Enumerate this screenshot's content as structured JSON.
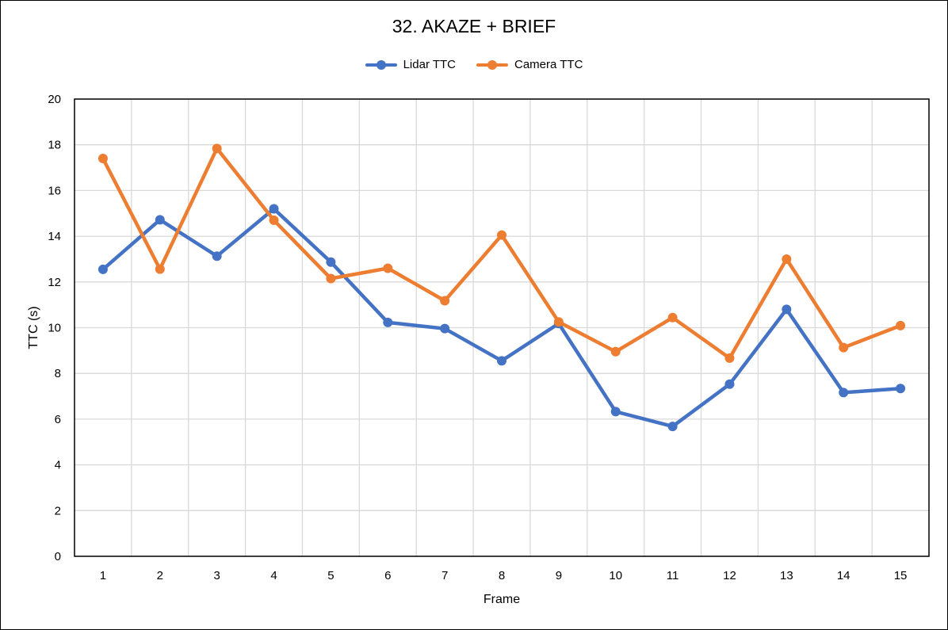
{
  "chart_data": {
    "type": "line",
    "title": "32. AKAZE + BRIEF",
    "xlabel": "Frame",
    "ylabel": "TTC (s)",
    "x": [
      "1",
      "2",
      "3",
      "4",
      "5",
      "6",
      "7",
      "8",
      "9",
      "10",
      "11",
      "12",
      "13",
      "14",
      "15"
    ],
    "ylim": [
      0,
      20
    ],
    "ytick_step": 2,
    "grid": true,
    "legend_position": "top",
    "series": [
      {
        "name": "Lidar TTC",
        "color": "#4472C4",
        "values": [
          12.55,
          14.72,
          13.13,
          15.2,
          12.87,
          10.23,
          9.96,
          8.55,
          10.18,
          6.33,
          5.68,
          7.53,
          10.8,
          7.16,
          7.34
        ]
      },
      {
        "name": "Camera TTC",
        "color": "#ED7D31",
        "values": [
          17.4,
          12.56,
          17.84,
          14.7,
          12.15,
          12.6,
          11.18,
          14.05,
          10.25,
          8.95,
          10.44,
          8.67,
          13.0,
          9.13,
          10.09
        ]
      }
    ]
  }
}
